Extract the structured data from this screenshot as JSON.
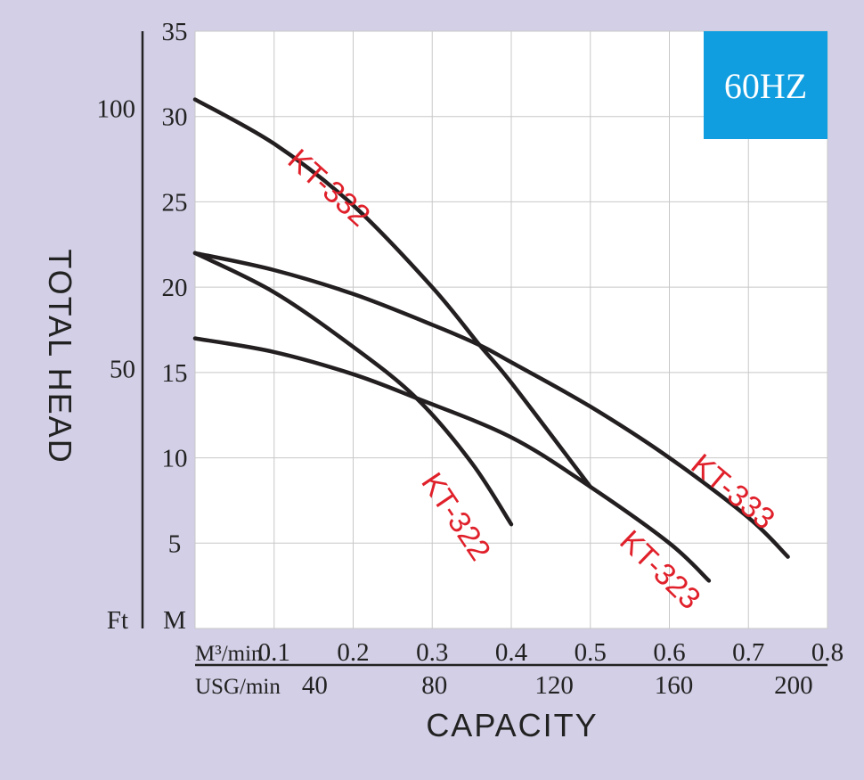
{
  "chart_data": {
    "type": "line",
    "badge": "60HZ",
    "badge_color": "#109ee0",
    "ylabel": "TOTAL HEAD",
    "xlabel": "CAPACITY",
    "y_unit_m": "M",
    "y_unit_ft": "Ft",
    "x_unit_m3": "M³/min",
    "x_unit_usg": "USG/min",
    "xlim": [
      0,
      0.8
    ],
    "ylim": [
      0,
      35
    ],
    "x_ticks": [
      0.1,
      0.2,
      0.3,
      0.4,
      0.5,
      0.6,
      0.7,
      0.8
    ],
    "x_tick_labels": [
      "0.1",
      "0.2",
      "0.3",
      "0.4",
      "0.5",
      "0.6",
      "0.7",
      "0.8"
    ],
    "usg_ticks": [
      40,
      80,
      120,
      160,
      200
    ],
    "usg_tick_labels": [
      "40",
      "80",
      "120",
      "160",
      "200"
    ],
    "y_ticks": [
      5,
      10,
      15,
      20,
      25,
      30,
      35
    ],
    "y_tick_labels": [
      "5",
      "10",
      "15",
      "20",
      "25",
      "30",
      "35"
    ],
    "ft_ticks": [
      50,
      100
    ],
    "ft_tick_labels": [
      "50",
      "100"
    ],
    "label_color": "#e0202a",
    "curve_color": "#231f20",
    "series": [
      {
        "name": "KT-332",
        "x": [
          0,
          0.1,
          0.2,
          0.3,
          0.36,
          0.4,
          0.5
        ],
        "y": [
          31,
          28.4,
          24.8,
          20,
          16.6,
          14.4,
          8.3
        ]
      },
      {
        "name": "KT-333",
        "x": [
          0,
          0.1,
          0.2,
          0.3,
          0.36,
          0.4,
          0.5,
          0.6,
          0.7,
          0.75
        ],
        "y": [
          22,
          21,
          19.6,
          17.8,
          16.6,
          15.6,
          13,
          10,
          6.5,
          4.2
        ]
      },
      {
        "name": "KT-322",
        "x": [
          0,
          0.1,
          0.2,
          0.28,
          0.35,
          0.4
        ],
        "y": [
          22,
          19.7,
          16.5,
          13.5,
          9.7,
          6.1
        ]
      },
      {
        "name": "KT-323",
        "x": [
          0,
          0.1,
          0.2,
          0.28,
          0.4,
          0.5,
          0.6,
          0.65
        ],
        "y": [
          17,
          16.2,
          14.9,
          13.5,
          11.2,
          8.3,
          5,
          2.8
        ]
      }
    ]
  }
}
